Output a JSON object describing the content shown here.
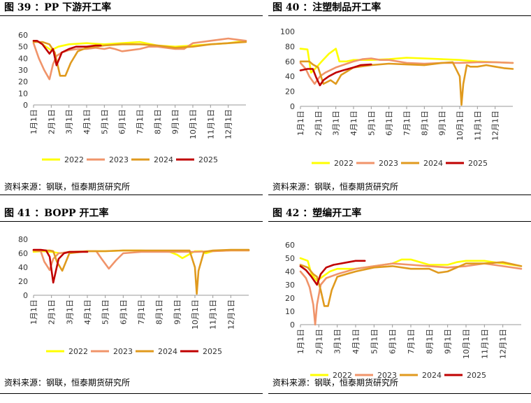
{
  "source_label": "资料来源：钢联，恒泰期货研究所",
  "colors": {
    "2022": "#FFFF00",
    "2023": "#F0946A",
    "2024": "#E09A1E",
    "2025": "#C00000"
  },
  "charts": [
    {
      "id": "fig39",
      "title": "图 39 ：PP 下游开工率",
      "chart_data": {
        "type": "line",
        "title": "PP 下游开工率",
        "ylim": [
          0,
          60
        ],
        "yticks": [
          0,
          10,
          20,
          30,
          40,
          50,
          60
        ],
        "x_domain": [
          0,
          12
        ],
        "xtick_labels": [
          "1月1日",
          "2月1日",
          "3月1日",
          "4月1日",
          "5月1日",
          "6月1日",
          "7月1日",
          "8月1日",
          "9月1日",
          "10月1日",
          "11月1日",
          "12月1日"
        ],
        "legend_position": "bottom",
        "series": [
          {
            "name": "2022",
            "x": [
              0,
              0.3,
              0.7,
              1.0,
              1.4,
              2.0,
              3.0,
              4.0,
              5.0,
              6.0,
              7.0,
              8.0,
              9.0,
              10.0,
              11.0,
              12.0
            ],
            "y": [
              55,
              54,
              50,
              47,
              50,
              52,
              53,
              52,
              53,
              54,
              51,
              50,
              51,
              52,
              53,
              55
            ]
          },
          {
            "name": "2023",
            "x": [
              0,
              0.3,
              0.6,
              0.9,
              1.1,
              1.3,
              1.6,
              2.0,
              2.5,
              3.0,
              3.5,
              4.0,
              4.3,
              4.6,
              5.0,
              5.5,
              6.0,
              6.5,
              7.0,
              7.5,
              8.0,
              8.5,
              9.0,
              9.5,
              10.0,
              10.5,
              11.0,
              11.5,
              12.0
            ],
            "y": [
              53,
              40,
              30,
              22,
              35,
              42,
              45,
              47,
              48,
              48,
              49,
              48,
              49,
              48,
              46,
              47,
              48,
              50,
              50,
              49,
              48,
              48,
              53,
              54,
              55,
              56,
              57,
              56,
              55
            ]
          },
          {
            "name": "2024",
            "x": [
              0,
              0.5,
              0.9,
              1.2,
              1.5,
              1.8,
              2.1,
              2.5,
              3.0,
              3.5,
              4.0,
              5.0,
              6.0,
              7.0,
              8.0,
              9.0,
              10.0,
              11.0,
              12.0
            ],
            "y": [
              54,
              54,
              52,
              45,
              25,
              25,
              36,
              46,
              49,
              50,
              51,
              52,
              52,
              51,
              49,
              50,
              52,
              53,
              54
            ]
          },
          {
            "name": "2025",
            "x": [
              0,
              0.2,
              0.5,
              0.7,
              0.9,
              1.1,
              1.3,
              1.6,
              2.0,
              2.4,
              3.0,
              3.5,
              3.8
            ],
            "y": [
              55,
              55,
              52,
              48,
              44,
              48,
              34,
              45,
              48,
              50,
              50,
              51,
              51
            ]
          }
        ]
      }
    },
    {
      "id": "fig40",
      "title": "图 40 ：注塑制品开工率",
      "chart_data": {
        "type": "line",
        "title": "注塑制品开工率",
        "ylim": [
          0,
          100
        ],
        "yticks": [
          0,
          20,
          40,
          60,
          80,
          100
        ],
        "x_domain": [
          0,
          12
        ],
        "xtick_labels": [
          "1月1日",
          "2月1日",
          "3月1日",
          "4月1日",
          "5月1日",
          "6月1日",
          "7月1日",
          "8月1日",
          "9月1日",
          "10月1日",
          "11月1日",
          "12月1日"
        ],
        "legend_position": "bottom",
        "series": [
          {
            "name": "2022",
            "x": [
              0,
              0.4,
              0.6,
              0.9,
              1.2,
              1.6,
              2.0,
              2.2,
              2.6,
              3.0,
              4.0,
              5.0,
              6.0,
              7.0,
              8.0,
              9.0,
              10.0,
              11.0,
              12.0
            ],
            "y": [
              77,
              76,
              45,
              52,
              60,
              70,
              77,
              60,
              60,
              62,
              62,
              63,
              65,
              64,
              63,
              62,
              60,
              59,
              58
            ]
          },
          {
            "name": "2023",
            "x": [
              0,
              0.3,
              0.5,
              0.8,
              1.1,
              1.4,
              2.0,
              3.0,
              3.5,
              4.0,
              4.5,
              5.0,
              6.0,
              7.0,
              8.0,
              9.0,
              10.0,
              11.0,
              12.0
            ],
            "y": [
              58,
              50,
              40,
              30,
              40,
              45,
              52,
              60,
              63,
              64,
              62,
              62,
              58,
              57,
              58,
              58,
              59,
              59,
              58
            ]
          },
          {
            "name": "2024",
            "x": [
              0,
              0.5,
              0.7,
              1.0,
              1.3,
              1.7,
              2.0,
              2.3,
              3.0,
              4.0,
              5.0,
              6.0,
              7.0,
              8.0,
              8.6,
              9.0,
              9.1,
              9.2,
              9.4,
              9.6,
              10.0,
              10.5,
              11.0,
              11.5,
              12.0
            ],
            "y": [
              60,
              60,
              56,
              52,
              30,
              35,
              30,
              42,
              52,
              55,
              57,
              56,
              55,
              58,
              59,
              40,
              2,
              30,
              55,
              53,
              53,
              55,
              53,
              51,
              50
            ]
          },
          {
            "name": "2025",
            "x": [
              0,
              0.4,
              0.7,
              0.9,
              1.1,
              1.3,
              1.6,
              2.0,
              2.4,
              3.0,
              3.4,
              4.0
            ],
            "y": [
              48,
              50,
              50,
              38,
              28,
              35,
              40,
              45,
              48,
              52,
              55,
              56
            ]
          }
        ]
      }
    },
    {
      "id": "fig41",
      "title": "图 41 ：BOPP 开工率",
      "chart_data": {
        "type": "line",
        "title": "BOPP 开工率",
        "ylim": [
          0,
          80
        ],
        "yticks": [
          0,
          20,
          40,
          60,
          80
        ],
        "x_domain": [
          0,
          12
        ],
        "xtick_labels": [
          "1月1日",
          "2月1日",
          "3月1日",
          "4月1日",
          "5月1日",
          "6月1日",
          "7月1日",
          "8月1日",
          "9月1日",
          "10月1日",
          "11月1日",
          "12月1日"
        ],
        "legend_position": "bottom",
        "series": [
          {
            "name": "2022",
            "x": [
              0,
              0.5,
              1.0,
              1.5,
              2.0,
              3.0,
              4.0,
              5.0,
              6.0,
              7.0,
              7.6,
              8.0,
              8.3,
              9.0,
              9.4,
              9.6,
              10.0,
              11.0,
              12.0
            ],
            "y": [
              62,
              63,
              62,
              60,
              62,
              63,
              63,
              64,
              64,
              63,
              62,
              58,
              53,
              63,
              63,
              60,
              63,
              64,
              64
            ]
          },
          {
            "name": "2023",
            "x": [
              0,
              0.4,
              0.6,
              0.9,
              1.1,
              1.4,
              2.0,
              3.0,
              3.5,
              3.8,
              4.2,
              4.6,
              5.0,
              6.0,
              7.0,
              8.0,
              9.0,
              10.0,
              11.0,
              12.0
            ],
            "y": [
              64,
              63,
              48,
              36,
              52,
              60,
              62,
              63,
              63,
              52,
              38,
              50,
              60,
              62,
              62,
              62,
              62,
              63,
              64,
              64
            ]
          },
          {
            "name": "2024",
            "x": [
              0,
              0.5,
              0.9,
              1.1,
              1.3,
              1.6,
              2.0,
              3.0,
              4.0,
              5.0,
              6.0,
              7.0,
              8.0,
              8.7,
              9.0,
              9.1,
              9.2,
              9.5,
              10.0,
              11.0,
              12.0
            ],
            "y": [
              64,
              64,
              64,
              63,
              48,
              35,
              60,
              63,
              63,
              64,
              64,
              64,
              64,
              64,
              40,
              2,
              35,
              62,
              64,
              65,
              65
            ]
          },
          {
            "name": "2025",
            "x": [
              0,
              0.4,
              0.7,
              0.9,
              1.1,
              1.4,
              1.7,
              2.0,
              2.5,
              3.0
            ],
            "y": [
              65,
              65,
              64,
              55,
              18,
              52,
              60,
              62,
              62,
              62
            ]
          }
        ]
      }
    },
    {
      "id": "fig42",
      "title": "图 42 ：塑编开工率",
      "chart_data": {
        "type": "line",
        "title": "塑编开工率",
        "ylim": [
          0,
          60
        ],
        "yticks": [
          0,
          10,
          20,
          30,
          40,
          50,
          60
        ],
        "x_domain": [
          0,
          12
        ],
        "xtick_labels": [
          "1月1日",
          "2月1日",
          "3月1日",
          "4月1日",
          "5月1日",
          "6月1日",
          "7月1日",
          "8月1日",
          "9月1日",
          "10月1日",
          "11月1日",
          "12月1日"
        ],
        "legend_position": "bottom",
        "series": [
          {
            "name": "2022",
            "x": [
              0,
              0.4,
              0.6,
              0.9,
              1.2,
              1.6,
              2.0,
              3.0,
              4.0,
              4.5,
              5.0,
              5.5,
              6.0,
              7.0,
              8.0,
              8.5,
              9.0,
              10.0,
              11.0,
              12.0
            ],
            "y": [
              50,
              48,
              38,
              33,
              36,
              40,
              42,
              42,
              44,
              45,
              46,
              49,
              49,
              45,
              45,
              47,
              48,
              48,
              46,
              44
            ]
          },
          {
            "name": "2023",
            "x": [
              0,
              0.3,
              0.5,
              0.7,
              0.8,
              0.9,
              1.1,
              1.4,
              2.0,
              3.0,
              4.0,
              5.0,
              6.0,
              7.0,
              8.0,
              9.0,
              10.0,
              11.0,
              12.0
            ],
            "y": [
              40,
              35,
              28,
              15,
              0,
              15,
              30,
              35,
              38,
              42,
              44,
              46,
              45,
              44,
              43,
              44,
              46,
              44,
              42
            ]
          },
          {
            "name": "2024",
            "x": [
              0,
              0.4,
              0.7,
              0.9,
              1.1,
              1.3,
              1.5,
              1.7,
              2.0,
              2.5,
              3.0,
              4.0,
              5.0,
              6.0,
              7.0,
              7.5,
              8.0,
              9.0,
              10.0,
              11.0,
              12.0
            ],
            "y": [
              45,
              43,
              38,
              36,
              26,
              14,
              14,
              26,
              36,
              38,
              40,
              43,
              44,
              42,
              42,
              39,
              40,
              46,
              46,
              47,
              44
            ]
          },
          {
            "name": "2025",
            "x": [
              0,
              0.3,
              0.6,
              0.9,
              1.1,
              1.4,
              1.8,
              2.2,
              2.6,
              3.0,
              3.5
            ],
            "y": [
              44,
              41,
              36,
              30,
              38,
              43,
              45,
              46,
              47,
              48,
              48
            ]
          }
        ]
      }
    }
  ]
}
